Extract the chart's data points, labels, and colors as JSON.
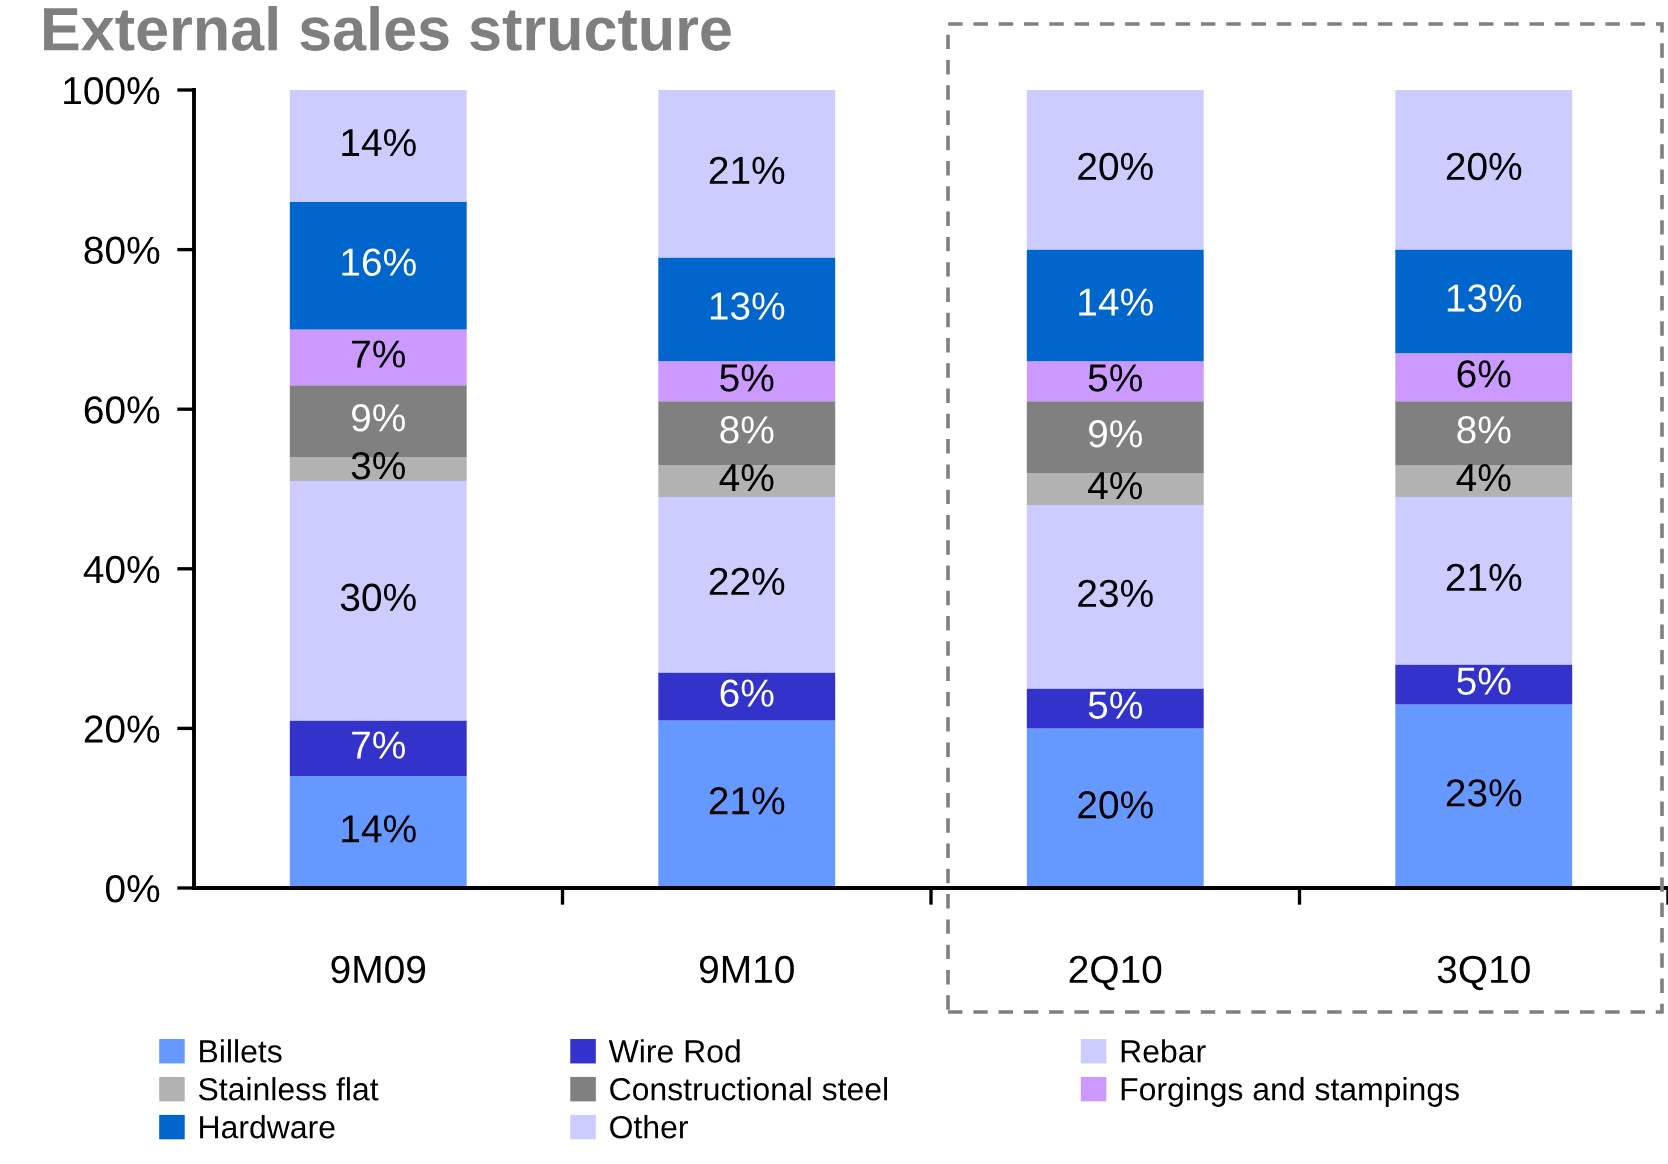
{
  "chart_data": {
    "type": "bar",
    "title": "External sales structure",
    "stacked": true,
    "categories": [
      "9M09",
      "9M10",
      "2Q10",
      "3Q10"
    ],
    "series": [
      {
        "name": "Billets",
        "color": "#6699ff",
        "values": [
          14,
          21,
          20,
          23
        ],
        "value_labels": [
          "14%",
          "21%",
          "20%",
          "23%"
        ]
      },
      {
        "name": "Wire Rod",
        "color": "#3333cc",
        "values": [
          7,
          6,
          5,
          5
        ],
        "value_labels": [
          "7%",
          "6%",
          "5%",
          "5%"
        ]
      },
      {
        "name": "Rebar",
        "color": "#ccccff",
        "values": [
          30,
          22,
          23,
          21
        ],
        "value_labels": [
          "30%",
          "22%",
          "23%",
          "21%"
        ]
      },
      {
        "name": "Stainless flat",
        "color": "#b2b2b2",
        "values": [
          3,
          4,
          4,
          4
        ],
        "value_labels": [
          "3%",
          "4%",
          "4%",
          "4%"
        ]
      },
      {
        "name": "Constructional steel",
        "color": "#808080",
        "values": [
          9,
          8,
          9,
          8
        ],
        "value_labels": [
          "9%",
          "8%",
          "9%",
          "8%"
        ]
      },
      {
        "name": "Forgings and stampings",
        "color": "#cc99ff",
        "values": [
          7,
          5,
          5,
          6
        ],
        "value_labels": [
          "7%",
          "5%",
          "5%",
          "6%"
        ]
      },
      {
        "name": "Hardware",
        "color": "#0066cc",
        "values": [
          16,
          13,
          14,
          13
        ],
        "value_labels": [
          "16%",
          "13%",
          "14%",
          "13%"
        ]
      },
      {
        "name": "Other",
        "color": "#ccccff",
        "values": [
          14,
          21,
          20,
          20
        ],
        "value_labels": [
          "14%",
          "21%",
          "20%",
          "20%"
        ]
      }
    ],
    "ylim": [
      0,
      100
    ],
    "yticks": [
      {
        "value": 0,
        "label": "0%"
      },
      {
        "value": 20,
        "label": "20%"
      },
      {
        "value": 40,
        "label": "40%"
      },
      {
        "value": 60,
        "label": "60%"
      },
      {
        "value": 80,
        "label": "80%"
      },
      {
        "value": 100,
        "label": "100%"
      }
    ],
    "legend": "bottom"
  }
}
